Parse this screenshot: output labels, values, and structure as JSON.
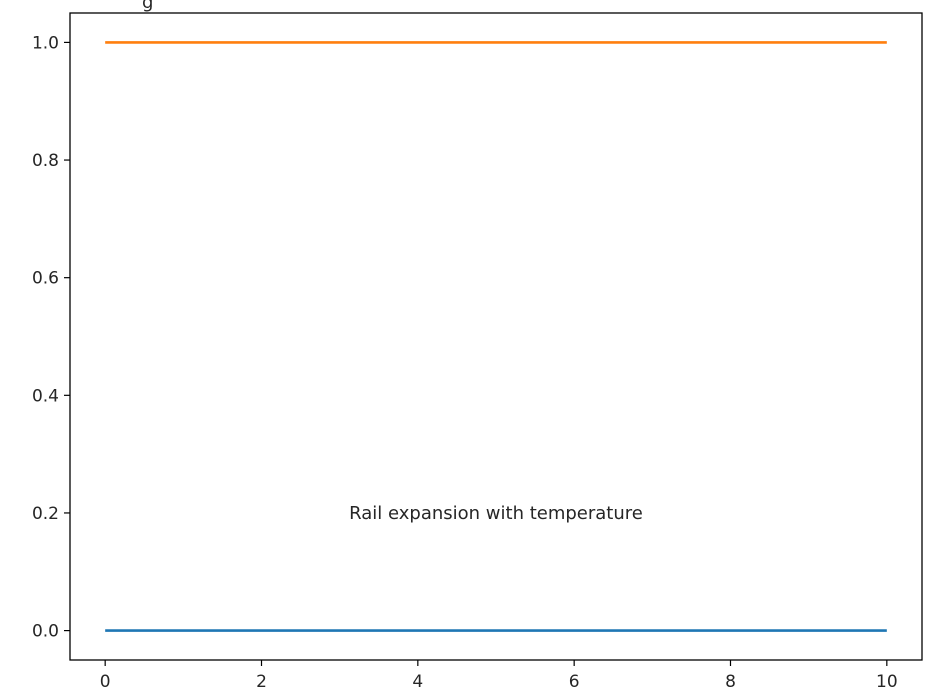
{
  "chart_data": {
    "type": "line",
    "title": "",
    "xlabel": "",
    "ylabel": "",
    "xlim": [
      -0.45,
      10.45
    ],
    "ylim": [
      -0.05,
      1.05
    ],
    "x_ticks": [
      0,
      2,
      4,
      6,
      8,
      10
    ],
    "x_tick_labels": [
      "0",
      "2",
      "4",
      "6",
      "8",
      "10"
    ],
    "y_ticks": [
      0.0,
      0.2,
      0.4,
      0.6,
      0.8,
      1.0
    ],
    "y_tick_labels": [
      "0.0",
      "0.2",
      "0.4",
      "0.6",
      "0.8",
      "1.0"
    ],
    "grid": false,
    "series": [
      {
        "x": [
          0,
          10
        ],
        "values": [
          0,
          0
        ],
        "color": "#1f77b4"
      },
      {
        "x": [
          0,
          10
        ],
        "values": [
          1,
          1
        ],
        "color": "#ff7f0e"
      }
    ],
    "annotations": [
      {
        "text": "Rail expansion with temperature",
        "x": 5,
        "y": 0.2
      }
    ]
  }
}
